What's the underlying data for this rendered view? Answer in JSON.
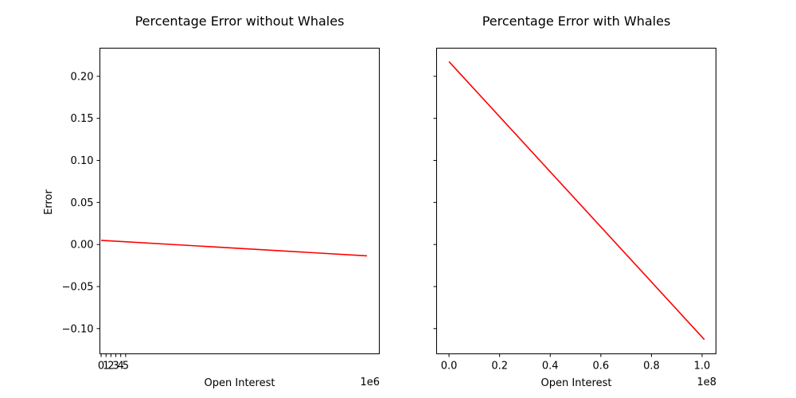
{
  "chart_data": [
    {
      "type": "line",
      "title": "Percentage Error without Whales",
      "xlabel": "Open Interest",
      "ylabel": "Error",
      "x_offset_label": "1e6",
      "xlim": [
        -250000,
        56700000
      ],
      "ylim": [
        -0.13,
        0.2335
      ],
      "x_ticks": [
        0,
        1000000,
        2000000,
        3000000,
        4000000,
        5000000
      ],
      "x_tick_labels": [
        "0",
        "1",
        "2",
        "3",
        "4",
        "5"
      ],
      "y_ticks": [
        0.2,
        0.15,
        0.1,
        0.05,
        0.0,
        -0.05,
        -0.1
      ],
      "y_tick_labels": [
        "0.20",
        "0.15",
        "0.10",
        "0.05",
        "0.00",
        "−0.05",
        "−0.10"
      ],
      "show_y_tick_labels": true,
      "grid": false,
      "series": [
        {
          "color": "#ff0000",
          "x": [
            0,
            54200000
          ],
          "y": [
            0.005,
            -0.0135
          ]
        }
      ]
    },
    {
      "type": "line",
      "title": "Percentage Error with Whales",
      "xlabel": "Open Interest",
      "ylabel": "",
      "x_offset_label": "1e8",
      "xlim": [
        -4900000,
        105500000
      ],
      "ylim": [
        -0.13,
        0.2335
      ],
      "x_ticks": [
        0,
        20000000,
        40000000,
        60000000,
        80000000,
        100000000
      ],
      "x_tick_labels": [
        "0.0",
        "0.2",
        "0.4",
        "0.6",
        "0.8",
        "1.0"
      ],
      "y_ticks": [
        0.2,
        0.15,
        0.1,
        0.05,
        0.0,
        -0.05,
        -0.1
      ],
      "y_tick_labels": [],
      "show_y_tick_labels": false,
      "grid": false,
      "series": [
        {
          "color": "#ff0000",
          "x": [
            0,
            100900000
          ],
          "y": [
            0.2175,
            -0.113
          ]
        }
      ]
    }
  ]
}
